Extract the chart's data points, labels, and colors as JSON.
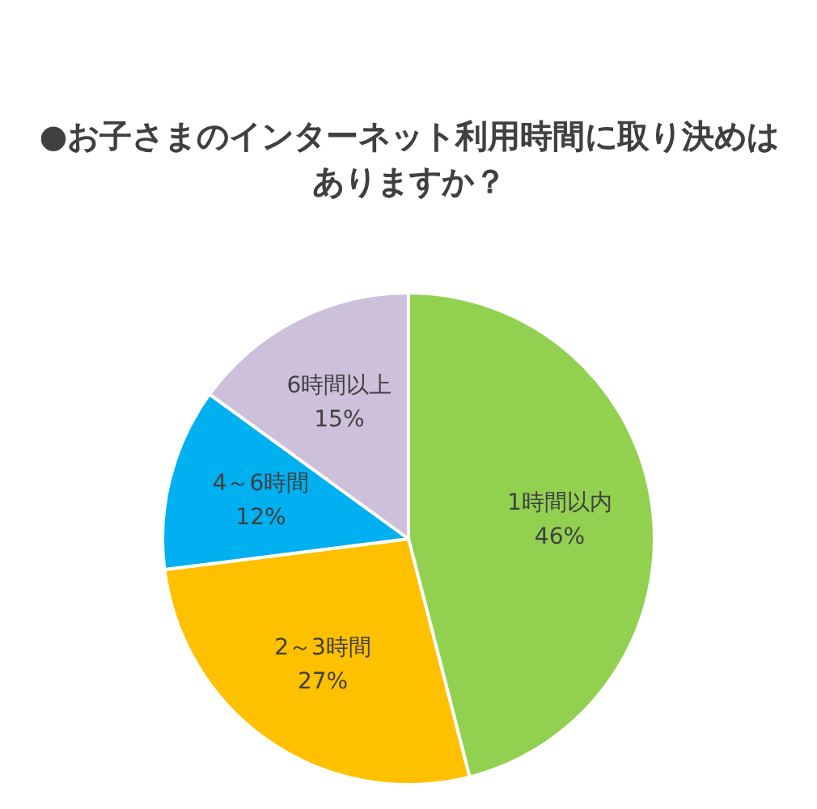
{
  "chart_data": {
    "type": "pie",
    "title": "●お子さまのインターネット利用時間に取り決めはありますか？",
    "categories": [
      "1時間以内",
      "2～3時間",
      "4～6時間",
      "6時間以上"
    ],
    "values": [
      46,
      27,
      12,
      15
    ],
    "value_labels": [
      "46%",
      "27%",
      "12%",
      "15%"
    ],
    "colors": [
      "#92d050",
      "#ffc000",
      "#00b0f0",
      "#ccc0da"
    ],
    "legend": false
  }
}
